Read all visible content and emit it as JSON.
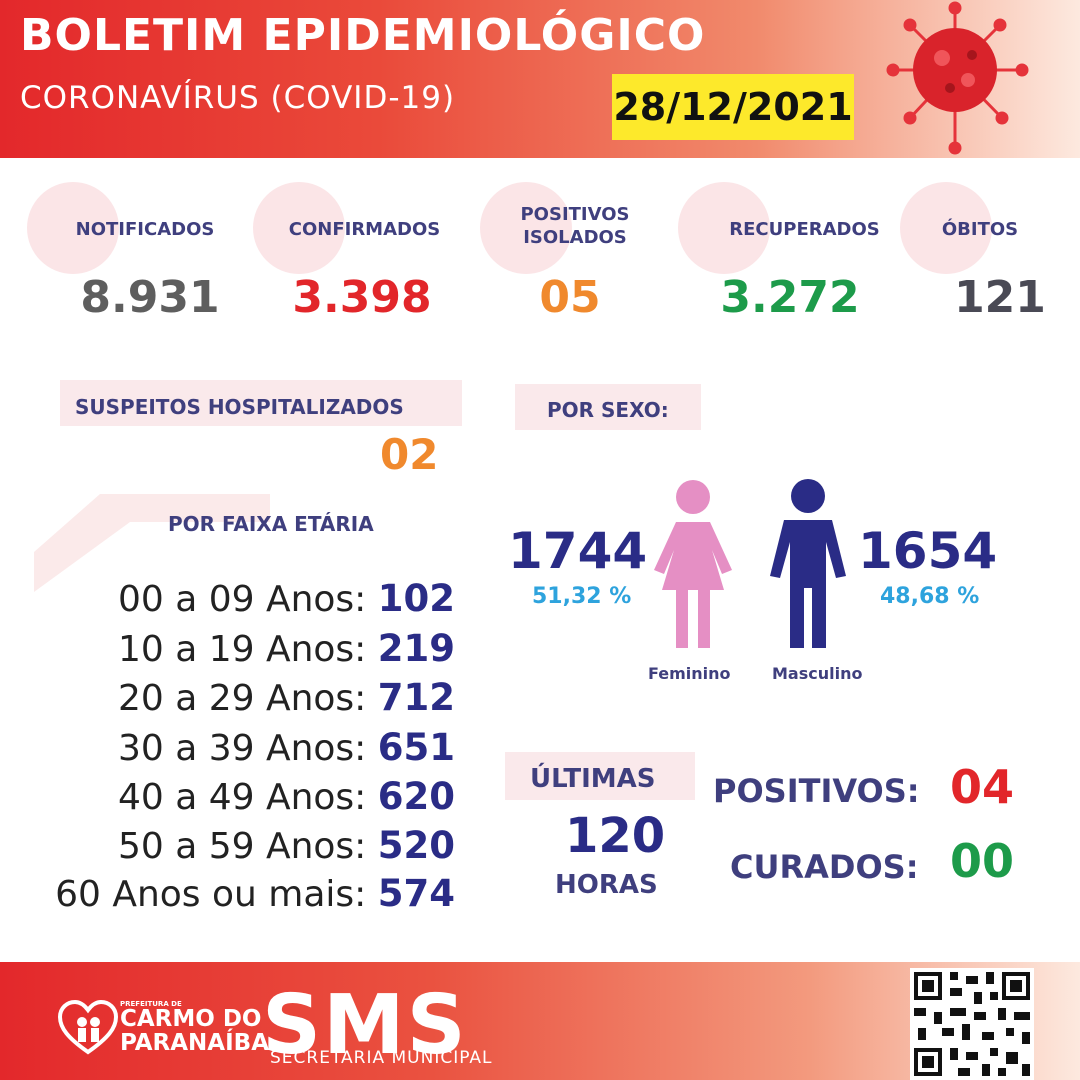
{
  "header": {
    "title": "BOLETIM EPIDEMIOLÓGICO",
    "subtitle": "CORONAVÍRUS (COVID-19)",
    "date": "28/12/2021"
  },
  "stats": [
    {
      "label": "NOTIFICADOS",
      "value": "8.931",
      "color": "#5e5e5e"
    },
    {
      "label": "CONFIRMADOS",
      "value": "3.398",
      "color": "#e2262a"
    },
    {
      "label": "POSITIVOS ISOLADOS",
      "value": "05",
      "color": "#f0892d"
    },
    {
      "label": "RECUPERADOS",
      "value": "3.272",
      "color": "#1d9b4a"
    },
    {
      "label": "ÓBITOS",
      "value": "121",
      "color": "#4a4a55"
    }
  ],
  "hospitalized": {
    "label": "SUSPEITOS HOSPITALIZADOS",
    "value": "02"
  },
  "age": {
    "title": "POR FAIXA ETÁRIA",
    "rows": [
      {
        "label": "00 a 09 Anos:",
        "value": "102"
      },
      {
        "label": "10 a 19 Anos:",
        "value": "219"
      },
      {
        "label": "20 a 29 Anos:",
        "value": "712"
      },
      {
        "label": "30 a 39 Anos:",
        "value": "651"
      },
      {
        "label": "40 a 49 Anos:",
        "value": "620"
      },
      {
        "label": "50 a 59 Anos:",
        "value": "520"
      },
      {
        "label": "60 Anos ou mais:",
        "value": "574"
      }
    ]
  },
  "sex": {
    "title": "POR SEXO:",
    "female": {
      "count": "1744",
      "percent": "51,32 %",
      "caption": "Feminino",
      "color": "#e58fc4"
    },
    "male": {
      "count": "1654",
      "percent": "48,68 %",
      "caption": "Masculino",
      "color": "#2a2c86"
    }
  },
  "recent": {
    "label": "ÚLTIMAS",
    "hours": "120",
    "hours_label": "HORAS",
    "positives_label": "POSITIVOS:",
    "positives_value": "04",
    "cured_label": "CURADOS:",
    "cured_value": "00"
  },
  "footer": {
    "org_small": "PREFEITURA DE",
    "org_line1": "CARMO DO",
    "org_line2": "PARANAÍBA",
    "sms": "SMS",
    "sms_sub": "SECRETARIA MUNICIPAL"
  }
}
